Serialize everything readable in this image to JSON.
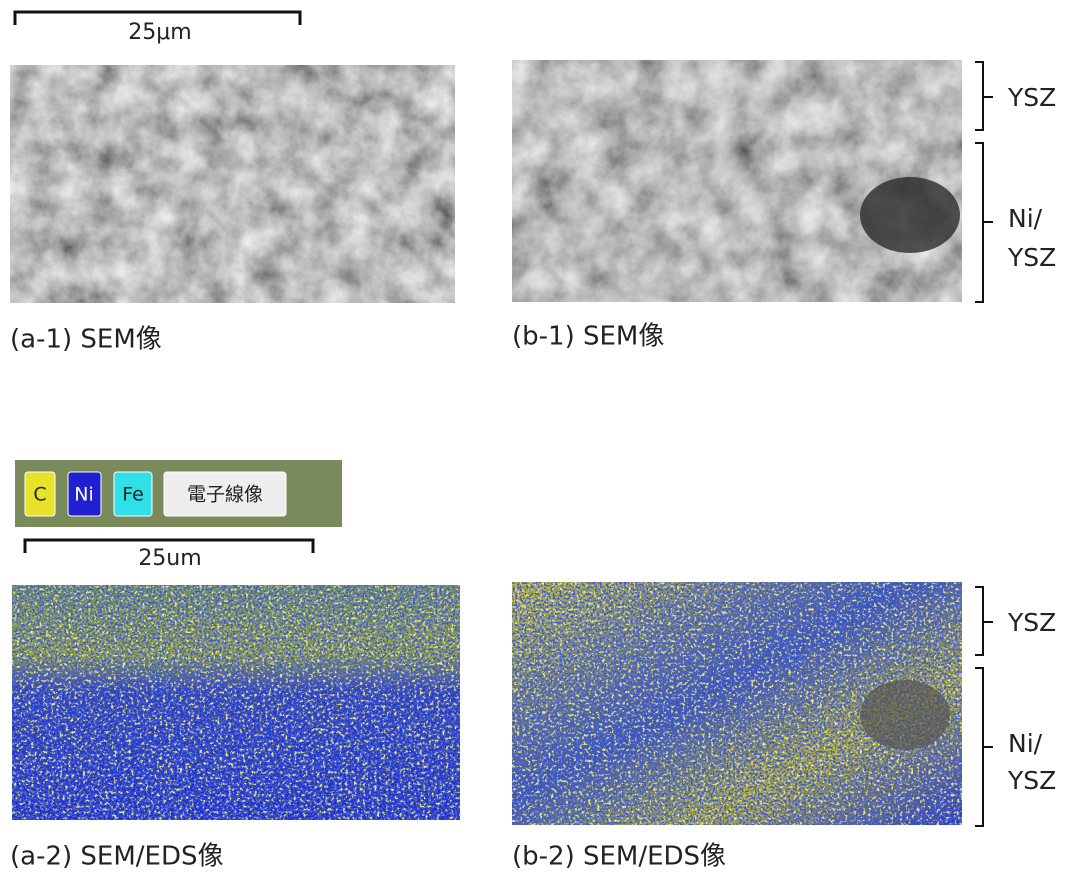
{
  "top": {
    "scale_bar": "25μm",
    "left_caption": "(a-1) SEM像",
    "right_caption": "(b-1) SEM像",
    "layers": [
      {
        "lines": [
          "YSZ"
        ]
      },
      {
        "lines": [
          "Ni/",
          "YSZ"
        ]
      }
    ]
  },
  "bottom": {
    "legend": [
      "C",
      "Ni",
      "Fe",
      "電子線像"
    ],
    "scale_bar": "25um",
    "left_caption": "(a-2) SEM/EDS像",
    "right_caption": "(b-2) SEM/EDS像",
    "layers": [
      {
        "lines": [
          "YSZ"
        ]
      },
      {
        "lines": [
          "Ni/",
          "YSZ"
        ]
      }
    ]
  }
}
